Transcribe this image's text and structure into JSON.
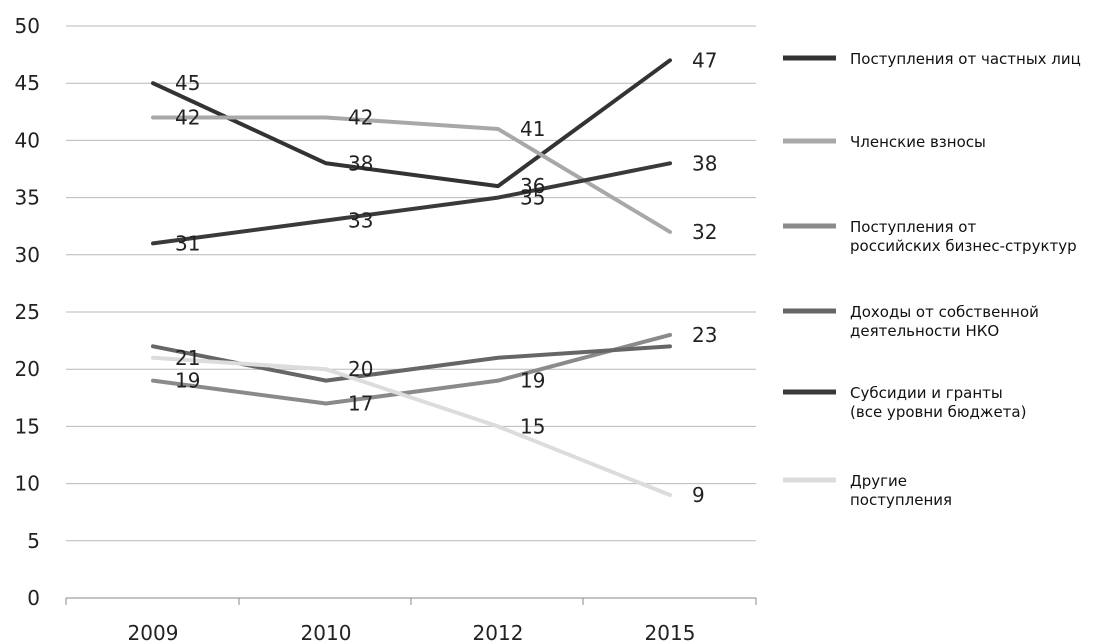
{
  "chart_data": {
    "type": "line",
    "categories": [
      "2009",
      "2010",
      "2012",
      "2015"
    ],
    "ylim": [
      0,
      50
    ],
    "yticks": [
      0,
      5,
      10,
      15,
      20,
      25,
      30,
      35,
      40,
      45,
      50
    ],
    "grid": "horizontal",
    "legend_position": "right",
    "series": [
      {
        "name": "Поступления от частных лиц",
        "lines": [
          "Поступления от частных лиц"
        ],
        "color": "#333333",
        "values": [
          45,
          38,
          36,
          47
        ],
        "labels": [
          "45",
          "38",
          "36",
          "47"
        ]
      },
      {
        "name": "Членские взносы",
        "lines": [
          "Членские взносы"
        ],
        "color": "#a8a8a8",
        "values": [
          42,
          42,
          41,
          32
        ],
        "labels": [
          "42",
          "42",
          "41",
          "32"
        ]
      },
      {
        "name": "Поступления от российских бизнес-структур",
        "lines": [
          "Поступления от",
          "российских бизнес-структур"
        ],
        "color": "#8a8a8a",
        "values": [
          19,
          17,
          19,
          23
        ],
        "labels": [
          "19",
          "17",
          "19",
          "23"
        ]
      },
      {
        "name": "Доходы от собственной деятельности НКО",
        "lines": [
          "Доходы от собственной",
          "деятельности НКО"
        ],
        "color": "#666666",
        "values": [
          22,
          19,
          21,
          22
        ],
        "labels": [
          "",
          "",
          "",
          ""
        ]
      },
      {
        "name": "Субсидии и гранты (все уровни бюджета)",
        "lines": [
          "Субсидии и гранты",
          "(все уровни бюджета)"
        ],
        "color": "#3a3a3a",
        "values": [
          31,
          33,
          35,
          38
        ],
        "labels": [
          "31",
          "33",
          "35",
          "38"
        ]
      },
      {
        "name": "Другие поступления",
        "lines": [
          "Другие",
          "поступления"
        ],
        "color": "#dcdcdc",
        "values": [
          21,
          20,
          15,
          9
        ],
        "labels": [
          "21",
          "20",
          "15",
          "9"
        ]
      }
    ]
  }
}
